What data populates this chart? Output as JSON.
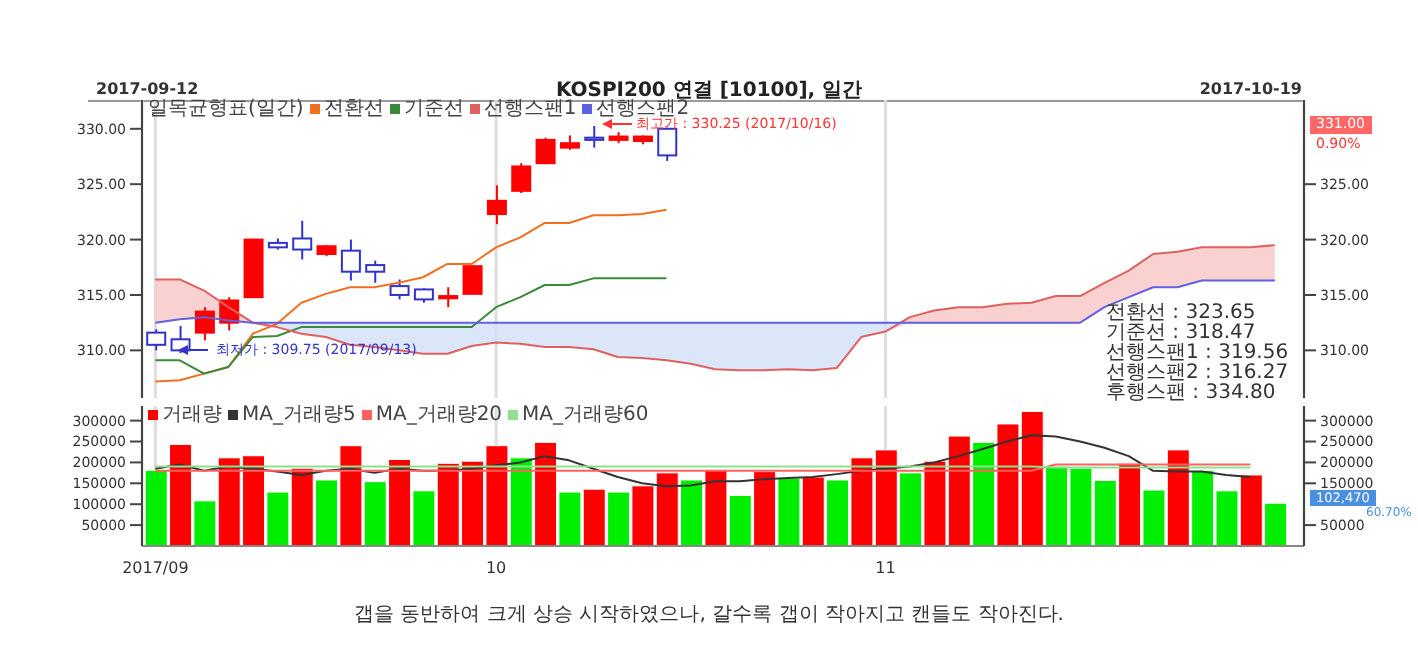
{
  "chart_data": [
    {
      "type": "candlestick",
      "title": "KOSPI200 연결 [10100], 일간",
      "legend_title": "일목균형표(일간)",
      "legend": "top left",
      "tick_labels": "y",
      "grid": "x",
      "categories": [
        "2017/09",
        null,
        null,
        null,
        null,
        null,
        null,
        null,
        null,
        null,
        null,
        null,
        null,
        null,
        "10",
        null,
        null,
        null,
        null,
        null,
        null,
        null,
        null,
        null,
        null,
        null,
        null,
        null,
        null,
        null,
        "11",
        null,
        null,
        null,
        null,
        null,
        null,
        null,
        null,
        null,
        null,
        null,
        null,
        null,
        null,
        null,
        null
      ],
      "ohlc": [
        [
          311.6,
          311.9,
          310.0,
          310.5
        ],
        [
          311.0,
          312.2,
          309.75,
          310.0
        ],
        [
          311.6,
          313.9,
          310.9,
          313.5
        ],
        [
          312.5,
          314.8,
          311.8,
          314.5
        ],
        [
          314.8,
          320.0,
          314.8,
          320.0
        ],
        [
          319.7,
          320.1,
          319.1,
          319.3
        ],
        [
          320.1,
          321.7,
          318.2,
          319.1
        ],
        [
          318.7,
          319.5,
          318.5,
          319.4
        ],
        [
          319.0,
          320.0,
          316.3,
          317.1
        ],
        [
          317.7,
          318.1,
          316.1,
          317.1
        ],
        [
          315.8,
          316.4,
          314.6,
          315.0
        ],
        [
          315.5,
          315.6,
          314.3,
          314.6
        ],
        [
          314.7,
          315.7,
          313.9,
          314.9
        ],
        [
          315.1,
          317.6,
          315.1,
          317.6
        ],
        [
          322.3,
          324.9,
          321.4,
          323.5
        ],
        [
          324.4,
          326.9,
          324.2,
          326.6
        ],
        [
          326.9,
          329.2,
          326.8,
          329.0
        ],
        [
          328.3,
          329.4,
          328.1,
          328.7
        ],
        [
          329.2,
          330.25,
          328.3,
          329.0
        ],
        [
          329.0,
          329.7,
          328.7,
          329.3
        ],
        [
          328.9,
          329.4,
          328.6,
          329.3
        ],
        [
          330.0,
          330.1,
          327.1,
          327.6
        ],
        null,
        null,
        null,
        null,
        null,
        null,
        null,
        null,
        null,
        null,
        null,
        null,
        null,
        null,
        null,
        null,
        null,
        null,
        null,
        null,
        null,
        null,
        null,
        null,
        null
      ],
      "colors": [
        "#3333cc",
        "#3333cc",
        "#ff0000",
        "#ff0000",
        "#ff0000",
        "#3333cc",
        "#3333cc",
        "#ff0000",
        "#3333cc",
        "#3333cc",
        "#3333cc",
        "#3333cc",
        "#ff0000",
        "#ff0000",
        "#ff0000",
        "#ff0000",
        "#ff0000",
        "#ff0000",
        "#3333cc",
        "#ff0000",
        "#ff0000",
        "#3333cc",
        null,
        null,
        null,
        null,
        null,
        null,
        null,
        null,
        null,
        null,
        null,
        null,
        null,
        null,
        null,
        null,
        null,
        null,
        null,
        null,
        null,
        null,
        null,
        null,
        null
      ],
      "series": [
        {
          "name": "전환선",
          "type": "line",
          "color": "#f07020",
          "values": [
            307.2,
            307.3,
            307.9,
            308.5,
            311.5,
            312.4,
            314.3,
            315.1,
            315.7,
            315.7,
            316.1,
            316.6,
            317.8,
            317.8,
            319.3,
            320.2,
            321.5,
            321.5,
            322.2,
            322.2,
            322.3,
            322.7,
            null,
            null,
            null,
            null,
            null,
            null,
            null,
            null,
            null,
            null,
            null,
            null,
            null,
            null,
            null,
            null,
            null,
            null,
            null,
            null,
            null,
            null,
            null,
            null,
            null
          ]
        },
        {
          "name": "기준선",
          "type": "line",
          "color": "#3a8a3a",
          "values": [
            309.1,
            309.1,
            307.9,
            308.5,
            311.2,
            311.3,
            312.1,
            312.1,
            312.1,
            312.1,
            312.1,
            312.1,
            312.1,
            312.1,
            313.9,
            314.8,
            315.9,
            315.9,
            316.5,
            316.5,
            316.5,
            316.5,
            null,
            null,
            null,
            null,
            null,
            null,
            null,
            null,
            null,
            null,
            null,
            null,
            null,
            null,
            null,
            null,
            null,
            null,
            null,
            null,
            null,
            null,
            null,
            null,
            null
          ]
        },
        {
          "name": "선행스팬1",
          "type": "line",
          "color": "#e06060",
          "values": [
            316.4,
            316.4,
            315.4,
            313.9,
            312.5,
            312.1,
            311.5,
            311.2,
            310.5,
            310.3,
            310.0,
            309.7,
            309.7,
            310.4,
            310.7,
            310.6,
            310.3,
            310.3,
            310.1,
            309.4,
            309.3,
            309.1,
            308.8,
            308.3,
            308.2,
            308.2,
            308.3,
            308.2,
            308.4,
            311.2,
            311.7,
            313.0,
            313.6,
            313.9,
            313.9,
            314.2,
            314.3,
            314.9,
            314.9,
            316.1,
            317.2,
            318.7,
            318.9,
            319.3,
            319.3,
            319.3,
            319.5
          ]
        },
        {
          "name": "선행스팬2",
          "type": "line",
          "color": "#6060e0",
          "values": [
            312.5,
            312.8,
            313.0,
            312.7,
            312.5,
            312.5,
            312.5,
            312.5,
            312.5,
            312.5,
            312.5,
            312.5,
            312.5,
            312.5,
            312.5,
            312.5,
            312.5,
            312.5,
            312.5,
            312.5,
            312.5,
            312.5,
            312.5,
            312.5,
            312.5,
            312.5,
            312.5,
            312.5,
            312.5,
            312.5,
            312.5,
            312.5,
            312.5,
            312.5,
            312.5,
            312.5,
            312.5,
            312.5,
            312.5,
            313.9,
            314.8,
            315.7,
            315.7,
            316.3,
            316.3,
            316.3,
            316.3
          ]
        }
      ],
      "ylim": [
        305.7,
        332.6
      ],
      "yticks": [
        {
          "value": 310,
          "label": "310.00"
        },
        {
          "value": 315,
          "label": "315.00"
        },
        {
          "value": 320,
          "label": "320.00"
        },
        {
          "value": 325,
          "label": "325.00"
        },
        {
          "value": 330,
          "label": "330.00"
        }
      ],
      "y2lim": [
        305.7,
        332.6
      ],
      "y2ticks": [
        {
          "value": 310,
          "label": "310.00"
        },
        {
          "value": 315,
          "label": "315.00"
        },
        {
          "value": 320,
          "label": "320.00"
        },
        {
          "value": 325,
          "label": "325.00"
        }
      ],
      "annotations": [
        "2017-09-12",
        "2017-10-19",
        "전환선 : 323.65",
        "기준선 : 318.47",
        "선행스팬1 : 319.56",
        "선행스팬2 : 316.27",
        "후행스팬 : 334.80",
        "331.00",
        "0.90%",
        "최고가 : 330.25 (2017/10/16)",
        "최저가 : 309.75 (2017/09/13)"
      ]
    },
    {
      "type": "bar",
      "legend": "top left",
      "grid": "x",
      "categories": [
        "2017/09",
        null,
        null,
        null,
        null,
        null,
        null,
        null,
        null,
        null,
        null,
        null,
        null,
        null,
        "10",
        null,
        null,
        null,
        null,
        null,
        null,
        null,
        null,
        null,
        null,
        null,
        null,
        null,
        null,
        null,
        "11",
        null,
        null,
        null,
        null,
        null,
        null,
        null,
        null,
        null,
        null,
        null,
        null,
        null,
        null,
        null,
        null
      ],
      "series": [
        {
          "name": "거래량",
          "type": "bar",
          "color": "#ff0000",
          "values": [
            181000,
            243000,
            108000,
            211000,
            216000,
            129000,
            186000,
            158000,
            240000,
            154000,
            207000,
            132000,
            198000,
            203000,
            240000,
            211000,
            248000,
            129000,
            136000,
            129000,
            144000,
            175000,
            158000,
            181000,
            121000,
            178000,
            162000,
            165000,
            158000,
            211000,
            230000,
            175000,
            203000,
            263000,
            248000,
            292000,
            322000,
            191000,
            186000,
            157000,
            198000,
            134000,
            230000,
            181000,
            132000,
            170000,
            102470
          ],
          "colors": [
            "#00ee00",
            "#ff0000",
            "#00ee00",
            "#ff0000",
            "#ff0000",
            "#00ee00",
            "#ff0000",
            "#00ee00",
            "#ff0000",
            "#00ee00",
            "#ff0000",
            "#00ee00",
            "#ff0000",
            "#ff0000",
            "#ff0000",
            "#00ee00",
            "#ff0000",
            "#00ee00",
            "#ff0000",
            "#00ee00",
            "#ff0000",
            "#ff0000",
            "#00ee00",
            "#ff0000",
            "#00ee00",
            "#ff0000",
            "#00ee00",
            "#ff0000",
            "#00ee00",
            "#ff0000",
            "#ff0000",
            "#00ee00",
            "#ff0000",
            "#ff0000",
            "#00ee00",
            "#ff0000",
            "#ff0000",
            "#00ee00",
            "#00ee00",
            "#00ee00",
            "#ff0000",
            "#00ee00",
            "#ff0000",
            "#00ee00",
            "#00ee00",
            "#ff0000",
            "#00ee00"
          ]
        },
        {
          "name": "MA_거래량5",
          "type": "line",
          "color": "#333333",
          "values": [
            185000,
            195000,
            180000,
            190000,
            185000,
            178000,
            170000,
            180000,
            185000,
            175000,
            185000,
            180000,
            180000,
            185000,
            193000,
            200000,
            215000,
            205000,
            185000,
            165000,
            150000,
            143000,
            145000,
            155000,
            155000,
            160000,
            163000,
            165000,
            172000,
            180000,
            185000,
            190000,
            200000,
            215000,
            232000,
            250000,
            265000,
            262000,
            250000,
            235000,
            215000,
            180000,
            178000,
            178000,
            170000,
            165000,
            null
          ]
        },
        {
          "name": "MA_거래량20",
          "type": "line",
          "color": "#ff6060",
          "values": [
            180000,
            180000,
            180000,
            180000,
            180000,
            180000,
            180000,
            180000,
            180000,
            180000,
            180000,
            180000,
            180000,
            180000,
            180000,
            180000,
            180000,
            180000,
            180000,
            180000,
            180000,
            180000,
            180000,
            180000,
            180000,
            180000,
            180000,
            180000,
            180000,
            180000,
            180000,
            180000,
            180000,
            180000,
            180000,
            180000,
            180000,
            195000,
            195000,
            195000,
            195000,
            195000,
            195000,
            195000,
            195000,
            195000,
            null
          ]
        },
        {
          "name": "MA_거래량60",
          "type": "line",
          "color": "#90e090",
          "values": [
            190000,
            190000,
            190000,
            190000,
            190000,
            190000,
            190000,
            190000,
            190000,
            190000,
            190000,
            190000,
            190000,
            190000,
            190000,
            190000,
            190000,
            190000,
            190000,
            190000,
            190000,
            190000,
            190000,
            190000,
            190000,
            190000,
            190000,
            190000,
            190000,
            190000,
            190000,
            190000,
            190000,
            190000,
            190000,
            190000,
            190000,
            188000,
            188000,
            188000,
            188000,
            188000,
            188000,
            188000,
            188000,
            188000,
            null
          ]
        }
      ],
      "ylim": [
        0,
        335000
      ],
      "yticks": [
        50000,
        100000,
        150000,
        200000,
        250000,
        300000
      ],
      "y2lim": [
        0,
        335000
      ],
      "y2ticks": [
        50000,
        150000,
        200000,
        250000,
        300000
      ],
      "annotations": [
        "102,470",
        "60.70%",
        "갭을 동반하여 크게 상승 시작하였으나, 갈수록 갭이 작아지고 캔들도 작아진다."
      ]
    }
  ]
}
